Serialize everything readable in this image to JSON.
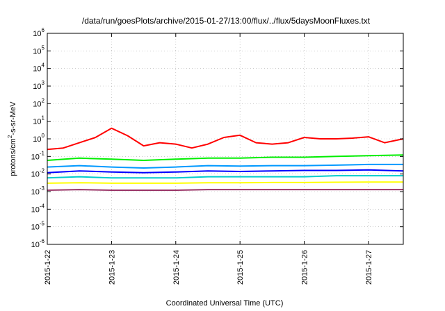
{
  "chart_data": {
    "type": "line",
    "title": "/data/run/goesPlots/archive/2015-01-27/13:00/flux/../flux/5daysMoonFluxes.txt",
    "xlabel": "Coordinated Universal Time (UTC)",
    "ylabel": {
      "prefix": "protons/cm",
      "superscript": "2",
      "suffix": "-s-sr-MeV"
    },
    "y_scale": "log",
    "ylim": [
      1e-06,
      1000000.0
    ],
    "y_ticks": [
      {
        "base": "10",
        "exp": "-6"
      },
      {
        "base": "10",
        "exp": "-5"
      },
      {
        "base": "10",
        "exp": "-4"
      },
      {
        "base": "10",
        "exp": "-3"
      },
      {
        "base": "10",
        "exp": "-2"
      },
      {
        "base": "10",
        "exp": "-1"
      },
      {
        "base": "10",
        "exp": "0"
      },
      {
        "base": "10",
        "exp": "1"
      },
      {
        "base": "10",
        "exp": "2"
      },
      {
        "base": "10",
        "exp": "3"
      },
      {
        "base": "10",
        "exp": "4"
      },
      {
        "base": "10",
        "exp": "5"
      },
      {
        "base": "10",
        "exp": "6"
      }
    ],
    "xlim": [
      "2015-01-22",
      "2015-01-27 13:00"
    ],
    "x_ticks": [
      "2015-1-22",
      "2015-1-23",
      "2015-1-24",
      "2015-1-25",
      "2015-1-26",
      "2015-1-27"
    ],
    "grid": true,
    "legend": "none",
    "series": [
      {
        "color": "#ff0000",
        "x": [
          "2015-01-22 00:00",
          "2015-01-22 06:00",
          "2015-01-22 12:00",
          "2015-01-22 18:00",
          "2015-01-23 00:00",
          "2015-01-23 06:00",
          "2015-01-23 12:00",
          "2015-01-23 18:00",
          "2015-01-24 00:00",
          "2015-01-24 06:00",
          "2015-01-24 12:00",
          "2015-01-24 18:00",
          "2015-01-25 00:00",
          "2015-01-25 06:00",
          "2015-01-25 12:00",
          "2015-01-25 18:00",
          "2015-01-26 00:00",
          "2015-01-26 06:00",
          "2015-01-26 12:00",
          "2015-01-26 18:00",
          "2015-01-27 00:00",
          "2015-01-27 06:00",
          "2015-01-27 13:00"
        ],
        "y": [
          0.25,
          0.3,
          0.6,
          1.2,
          4.0,
          1.5,
          0.4,
          0.6,
          0.5,
          0.3,
          0.5,
          1.2,
          1.6,
          0.6,
          0.5,
          0.6,
          1.2,
          1.0,
          1.0,
          1.1,
          1.3,
          0.6,
          1.0
        ]
      },
      {
        "color": "#00ee00",
        "x": [
          "2015-01-22 00:00",
          "2015-01-22 12:00",
          "2015-01-23 00:00",
          "2015-01-23 12:00",
          "2015-01-24 00:00",
          "2015-01-24 12:00",
          "2015-01-25 00:00",
          "2015-01-25 12:00",
          "2015-01-26 00:00",
          "2015-01-26 12:00",
          "2015-01-27 00:00",
          "2015-01-27 13:00"
        ],
        "y": [
          0.06,
          0.08,
          0.07,
          0.06,
          0.07,
          0.08,
          0.08,
          0.09,
          0.09,
          0.1,
          0.11,
          0.12
        ]
      },
      {
        "color": "#0099ff",
        "x": [
          "2015-01-22 00:00",
          "2015-01-22 12:00",
          "2015-01-23 00:00",
          "2015-01-23 12:00",
          "2015-01-24 00:00",
          "2015-01-24 12:00",
          "2015-01-25 00:00",
          "2015-01-25 12:00",
          "2015-01-26 00:00",
          "2015-01-26 12:00",
          "2015-01-27 00:00",
          "2015-01-27 13:00"
        ],
        "y": [
          0.025,
          0.03,
          0.025,
          0.022,
          0.025,
          0.03,
          0.028,
          0.03,
          0.03,
          0.032,
          0.035,
          0.035
        ]
      },
      {
        "color": "#0000ff",
        "x": [
          "2015-01-22 00:00",
          "2015-01-22 12:00",
          "2015-01-23 00:00",
          "2015-01-23 12:00",
          "2015-01-24 00:00",
          "2015-01-24 12:00",
          "2015-01-25 00:00",
          "2015-01-25 12:00",
          "2015-01-26 00:00",
          "2015-01-26 12:00",
          "2015-01-27 00:00",
          "2015-01-27 13:00"
        ],
        "y": [
          0.012,
          0.015,
          0.013,
          0.012,
          0.013,
          0.015,
          0.014,
          0.015,
          0.016,
          0.016,
          0.017,
          0.015
        ]
      },
      {
        "color": "#00cccc",
        "x": [
          "2015-01-22 00:00",
          "2015-01-22 12:00",
          "2015-01-23 00:00",
          "2015-01-23 12:00",
          "2015-01-24 00:00",
          "2015-01-24 12:00",
          "2015-01-25 00:00",
          "2015-01-25 12:00",
          "2015-01-26 00:00",
          "2015-01-26 12:00",
          "2015-01-27 00:00",
          "2015-01-27 13:00"
        ],
        "y": [
          0.006,
          0.007,
          0.006,
          0.006,
          0.006,
          0.007,
          0.007,
          0.007,
          0.007,
          0.008,
          0.008,
          0.008
        ]
      },
      {
        "color": "#ffff00",
        "x": [
          "2015-01-22 00:00",
          "2015-01-22 12:00",
          "2015-01-23 00:00",
          "2015-01-23 12:00",
          "2015-01-24 00:00",
          "2015-01-24 12:00",
          "2015-01-25 00:00",
          "2015-01-25 12:00",
          "2015-01-26 00:00",
          "2015-01-26 12:00",
          "2015-01-27 00:00",
          "2015-01-27 13:00"
        ],
        "y": [
          0.003,
          0.0032,
          0.003,
          0.003,
          0.003,
          0.0032,
          0.0032,
          0.0033,
          0.0033,
          0.0034,
          0.0035,
          0.0035
        ]
      },
      {
        "color": "#993366",
        "x": [
          "2015-01-22 00:00",
          "2015-01-22 12:00",
          "2015-01-23 00:00",
          "2015-01-23 12:00",
          "2015-01-24 00:00",
          "2015-01-24 12:00",
          "2015-01-25 00:00",
          "2015-01-25 12:00",
          "2015-01-26 00:00",
          "2015-01-26 12:00",
          "2015-01-27 00:00",
          "2015-01-27 13:00"
        ],
        "y": [
          0.0012,
          0.0013,
          0.0012,
          0.0012,
          0.0012,
          0.0013,
          0.0013,
          0.0013,
          0.0013,
          0.0013,
          0.0013,
          0.0013
        ]
      }
    ]
  }
}
